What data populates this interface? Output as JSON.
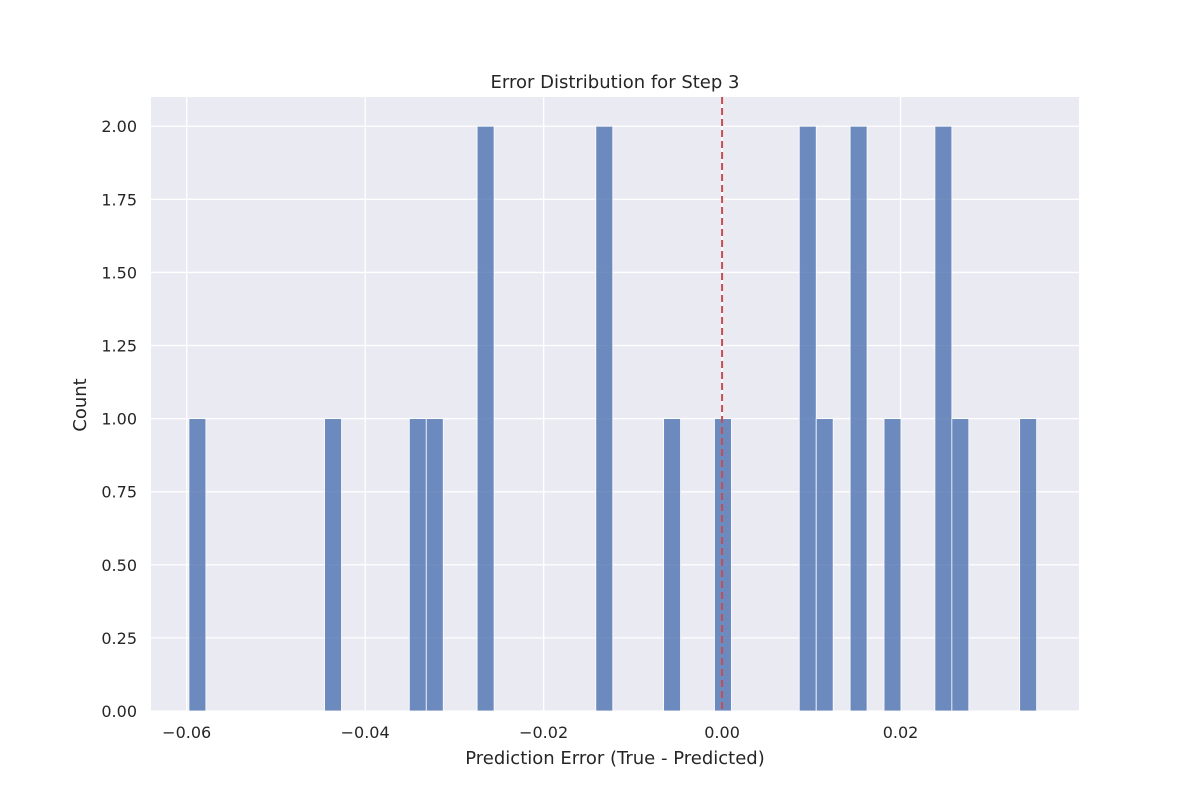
{
  "chart_data": {
    "type": "bar",
    "title": "Error Distribution for Step 3",
    "xlabel": "Prediction Error (True - Predicted)",
    "ylabel": "Count",
    "xlim": [
      -0.064,
      0.04
    ],
    "ylim": [
      0,
      2.1
    ],
    "x_ticks": [
      -0.06,
      -0.04,
      -0.02,
      0.0,
      0.02
    ],
    "x_tick_labels": [
      "−0.06",
      "−0.04",
      "−0.02",
      "0.00",
      "0.02"
    ],
    "y_ticks": [
      0,
      0.25,
      0.5,
      0.75,
      1.0,
      1.25,
      1.5,
      1.75,
      2.0
    ],
    "y_tick_labels": [
      "0.00",
      "0.25",
      "0.50",
      "0.75",
      "1.00",
      "1.25",
      "1.50",
      "1.75",
      "2.00"
    ],
    "bin_width": 0.0019,
    "bins": [
      {
        "x": -0.0588,
        "count": 1
      },
      {
        "x": -0.0436,
        "count": 1
      },
      {
        "x": -0.0341,
        "count": 1
      },
      {
        "x": -0.0322,
        "count": 1
      },
      {
        "x": -0.0265,
        "count": 2
      },
      {
        "x": -0.0132,
        "count": 2
      },
      {
        "x": -0.0056,
        "count": 1
      },
      {
        "x": 0.0001,
        "count": 1
      },
      {
        "x": 0.0096,
        "count": 2
      },
      {
        "x": 0.0115,
        "count": 1
      },
      {
        "x": 0.0153,
        "count": 2
      },
      {
        "x": 0.0191,
        "count": 1
      },
      {
        "x": 0.0248,
        "count": 2
      },
      {
        "x": 0.0267,
        "count": 1
      },
      {
        "x": 0.0343,
        "count": 1
      }
    ],
    "reference_line": {
      "x": 0.0,
      "style": "dashed",
      "color": "#c44e52"
    },
    "bar_color": "#4c72b0",
    "background_color": "#eaeaf2",
    "grid": true
  }
}
